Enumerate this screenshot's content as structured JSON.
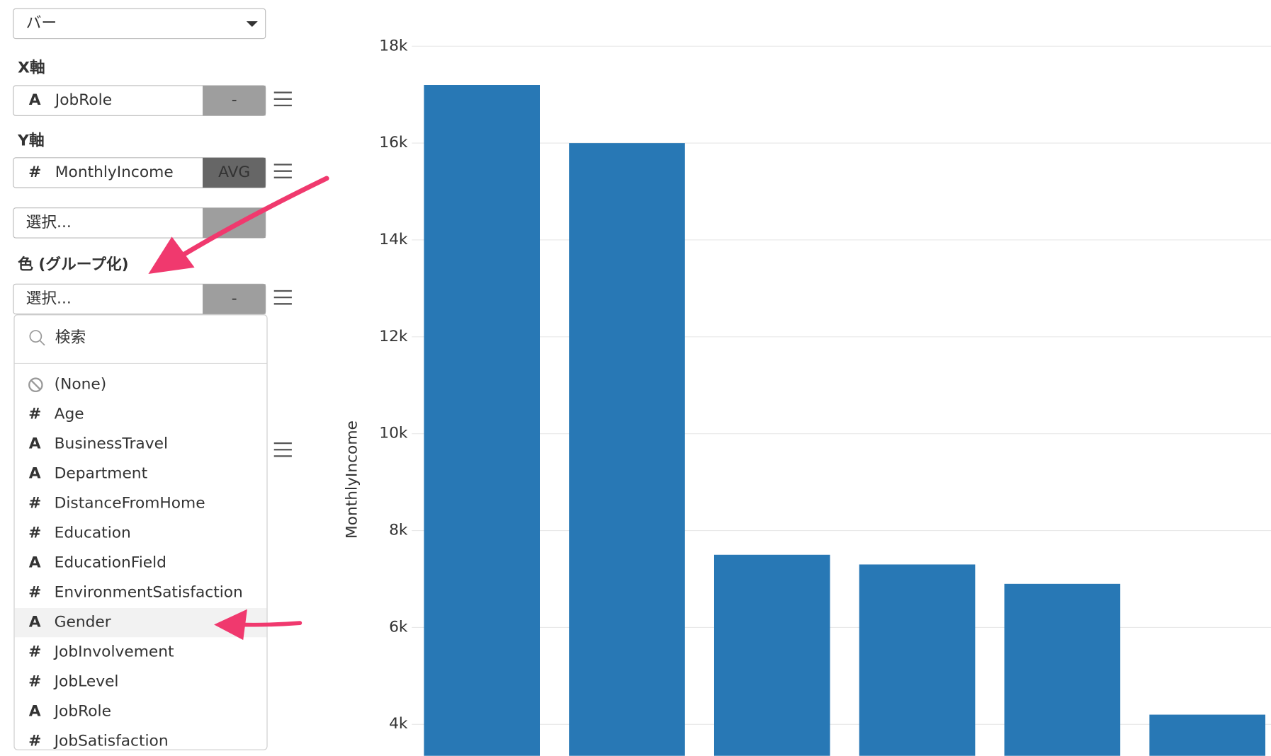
{
  "panel": {
    "chart_type_select": "バー",
    "x_axis": {
      "heading": "X軸",
      "icon": "A",
      "field": "JobRole",
      "agg": "-"
    },
    "y_axis": {
      "heading": "Y軸",
      "icon": "#",
      "field": "MonthlyIncome",
      "agg": "AVG",
      "extra_field": "選択..."
    },
    "color": {
      "heading": "色 (グループ化)",
      "field": "選択...",
      "agg": "-"
    },
    "dropdown": {
      "search_placeholder": "検索",
      "items": [
        {
          "icon": null,
          "label": "(None)"
        },
        {
          "icon": "#",
          "label": "Age"
        },
        {
          "icon": "A",
          "label": "BusinessTravel"
        },
        {
          "icon": "A",
          "label": "Department"
        },
        {
          "icon": "#",
          "label": "DistanceFromHome"
        },
        {
          "icon": "#",
          "label": "Education"
        },
        {
          "icon": "A",
          "label": "EducationField"
        },
        {
          "icon": "#",
          "label": "EnvironmentSatisfaction"
        },
        {
          "icon": "A",
          "label": "Gender"
        },
        {
          "icon": "#",
          "label": "JobInvolvement"
        },
        {
          "icon": "#",
          "label": "JobLevel"
        },
        {
          "icon": "A",
          "label": "JobRole"
        },
        {
          "icon": "#",
          "label": "JobSatisfaction"
        }
      ]
    }
  },
  "chart_data": {
    "type": "bar",
    "y_label": "MonthlyIncome",
    "categories": [
      null,
      null,
      null,
      null,
      null,
      null
    ],
    "values": [
      17200,
      16000,
      7500,
      7300,
      6900,
      4200
    ],
    "color": "#2878b5",
    "grid": true,
    "ylim": [
      3350,
      18950
    ],
    "yticks": [
      {
        "value": 4000,
        "label": "4k"
      },
      {
        "value": 6000,
        "label": "6k"
      },
      {
        "value": 8000,
        "label": "8k"
      },
      {
        "value": 10000,
        "label": "10k"
      },
      {
        "value": 12000,
        "label": "12k"
      },
      {
        "value": 14000,
        "label": "14k"
      },
      {
        "value": 16000,
        "label": "16k"
      },
      {
        "value": 18000,
        "label": "18k"
      }
    ]
  }
}
